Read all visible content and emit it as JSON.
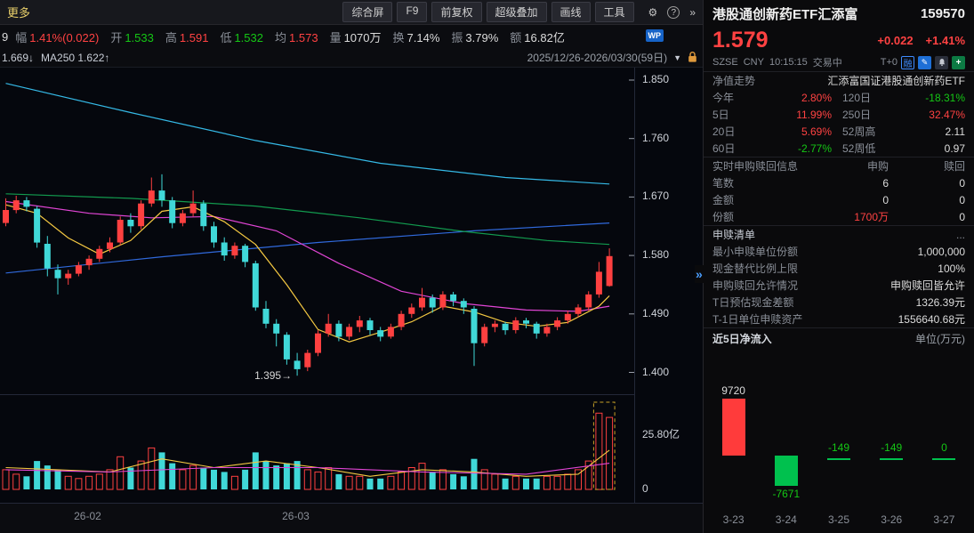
{
  "toolbar": {
    "more_label": "更多",
    "tabs": [
      "综合屏",
      "F9",
      "前复权",
      "超级叠加",
      "画线",
      "工具"
    ]
  },
  "stats": {
    "leading_fragment": "9",
    "items": [
      {
        "label": "幅",
        "value": "1.41%(0.022)",
        "color": "red"
      },
      {
        "label": "开",
        "value": "1.533",
        "color": "green"
      },
      {
        "label": "高",
        "value": "1.591",
        "color": "red"
      },
      {
        "label": "低",
        "value": "1.532",
        "color": "green"
      },
      {
        "label": "均",
        "value": "1.573",
        "color": "red"
      },
      {
        "label": "量",
        "value": "1070万",
        "color": "white"
      },
      {
        "label": "换",
        "value": "7.14%",
        "color": "white"
      },
      {
        "label": "振",
        "value": "3.79%",
        "color": "white"
      },
      {
        "label": "额",
        "value": "16.82亿",
        "color": "white"
      }
    ],
    "wp_badge": "WP"
  },
  "ma_bar": {
    "ma_fragment": "1.669↓",
    "ma250_label": "MA250 1.622↑",
    "date_range": "2025/12/26-2026/03/30(59日)",
    "dropdown_icon": "▼"
  },
  "quote": {
    "name": "港股通创新药ETF汇添富",
    "code": "159570",
    "price": "1.579",
    "change": "+0.022",
    "change_pct": "+1.41%",
    "exchange": "SZSE",
    "currency": "CNY",
    "time": "10:15:15",
    "status": "交易中",
    "t0_label": "T+0",
    "rong_label": "融"
  },
  "nav_section": {
    "title": "净值走势",
    "fund_name": "汇添富国证港股通创新药ETF",
    "rows": [
      {
        "l1": "今年",
        "v1": "2.80%",
        "c1": "red",
        "l2": "120日",
        "v2": "-18.31%",
        "c2": "green"
      },
      {
        "l1": "5日",
        "v1": "11.99%",
        "c1": "red",
        "l2": "250日",
        "v2": "32.47%",
        "c2": "red"
      },
      {
        "l1": "20日",
        "v1": "5.69%",
        "c1": "red",
        "l2": "52周高",
        "v2": "2.11",
        "c2": "white"
      },
      {
        "l1": "60日",
        "v1": "-2.77%",
        "c1": "green",
        "l2": "52周低",
        "v2": "0.97",
        "c2": "white"
      }
    ]
  },
  "subs_section": {
    "title": "实时申购赎回信息",
    "col1": "申购",
    "col2": "赎回",
    "rows": [
      {
        "label": "笔数",
        "v1": "6",
        "c1": "white",
        "v2": "0",
        "c2": "white"
      },
      {
        "label": "金额",
        "v1": "0",
        "c1": "white",
        "v2": "0",
        "c2": "white"
      },
      {
        "label": "份额",
        "v1": "1700万",
        "c1": "red",
        "v2": "0",
        "c2": "white"
      }
    ]
  },
  "list_section": {
    "title": "申赎清单",
    "more": "...",
    "rows": [
      {
        "label": "最小申赎单位份额",
        "value": "1,000,000"
      },
      {
        "label": "现金替代比例上限",
        "value": "100%"
      },
      {
        "label": "申购赎回允许情况",
        "value": "申购赎回皆允许"
      },
      {
        "label": "T日预估现金差额",
        "value": "1326.39元"
      },
      {
        "label": "T-1日单位申赎资产",
        "value": "1556640.68元"
      }
    ]
  },
  "flow_section": {
    "title": "近5日净流入",
    "unit": "单位(万元)",
    "items": [
      {
        "date": "3-23",
        "value": 9720,
        "label": "9720",
        "color": "red",
        "label_color": "white",
        "label_pos": "above"
      },
      {
        "date": "3-24",
        "value": -7671,
        "label": "-7671",
        "color": "green",
        "label_color": "green",
        "label_pos": "below"
      },
      {
        "date": "3-25",
        "value": -149,
        "label": "-149",
        "color": "green",
        "label_color": "green",
        "label_pos": "above"
      },
      {
        "date": "3-26",
        "value": -149,
        "label": "-149",
        "color": "green",
        "label_color": "green",
        "label_pos": "above"
      },
      {
        "date": "3-27",
        "value": 0,
        "label": "0",
        "color": "green",
        "label_color": "green",
        "label_pos": "above"
      }
    ]
  },
  "chart_data": {
    "type": "candlestick",
    "title": "港股通创新药ETF汇添富 159570 日K",
    "date_range": "2025/12/26-2026/03/30(59日)",
    "y_ticks": [
      "1.850",
      "1.760",
      "1.670",
      "1.580",
      "1.490",
      "1.400"
    ],
    "price_min_annotation": "1.395",
    "volume_ticks": [
      {
        "label": "25.80亿",
        "value": 25.8
      },
      {
        "label": "0",
        "value": 0
      }
    ],
    "volume_scale_max": 40,
    "x_labels": [
      {
        "label": "26-02",
        "index": 8
      },
      {
        "label": "26-03",
        "index": 28
      }
    ],
    "colors": {
      "up": "#fe4040",
      "down": "#40d8d8"
    },
    "highlight_last_n": 2,
    "candles": [
      [
        1.63,
        1.668,
        1.625,
        1.65
      ],
      [
        1.65,
        1.672,
        1.645,
        1.665
      ],
      [
        1.665,
        1.67,
        1.648,
        1.655
      ],
      [
        1.652,
        1.656,
        1.592,
        1.6
      ],
      [
        1.598,
        1.61,
        1.548,
        1.56
      ],
      [
        1.558,
        1.566,
        1.52,
        1.545
      ],
      [
        1.545,
        1.558,
        1.535,
        1.552
      ],
      [
        1.552,
        1.57,
        1.548,
        1.565
      ],
      [
        1.565,
        1.58,
        1.558,
        1.575
      ],
      [
        1.575,
        1.595,
        1.57,
        1.59
      ],
      [
        1.59,
        1.608,
        1.585,
        1.6
      ],
      [
        1.6,
        1.64,
        1.596,
        1.635
      ],
      [
        1.635,
        1.645,
        1.615,
        1.625
      ],
      [
        1.625,
        1.665,
        1.62,
        1.66
      ],
      [
        1.66,
        1.7,
        1.655,
        1.68
      ],
      [
        1.68,
        1.705,
        1.655,
        1.665
      ],
      [
        1.665,
        1.67,
        1.622,
        1.63
      ],
      [
        1.63,
        1.65,
        1.625,
        1.645
      ],
      [
        1.645,
        1.68,
        1.64,
        1.66
      ],
      [
        1.66,
        1.665,
        1.618,
        1.625
      ],
      [
        1.625,
        1.632,
        1.592,
        1.6
      ],
      [
        1.6,
        1.608,
        1.572,
        1.58
      ],
      [
        1.58,
        1.6,
        1.575,
        1.595
      ],
      [
        1.595,
        1.598,
        1.562,
        1.57
      ],
      [
        1.568,
        1.572,
        1.495,
        1.5
      ],
      [
        1.498,
        1.51,
        1.468,
        1.475
      ],
      [
        1.475,
        1.482,
        1.44,
        1.46
      ],
      [
        1.458,
        1.462,
        1.412,
        1.42
      ],
      [
        1.418,
        1.43,
        1.395,
        1.405
      ],
      [
        1.408,
        1.435,
        1.402,
        1.43
      ],
      [
        1.43,
        1.465,
        1.425,
        1.46
      ],
      [
        1.46,
        1.49,
        1.455,
        1.475
      ],
      [
        1.475,
        1.48,
        1.448,
        1.455
      ],
      [
        1.455,
        1.475,
        1.45,
        1.47
      ],
      [
        1.47,
        1.487,
        1.462,
        1.48
      ],
      [
        1.48,
        1.484,
        1.458,
        1.465
      ],
      [
        1.465,
        1.47,
        1.448,
        1.455
      ],
      [
        1.455,
        1.475,
        1.452,
        1.47
      ],
      [
        1.47,
        1.495,
        1.465,
        1.49
      ],
      [
        1.49,
        1.506,
        1.484,
        1.5
      ],
      [
        1.5,
        1.53,
        1.495,
        1.515
      ],
      [
        1.515,
        1.52,
        1.492,
        1.5
      ],
      [
        1.5,
        1.525,
        1.496,
        1.52
      ],
      [
        1.52,
        1.524,
        1.502,
        1.51
      ],
      [
        1.51,
        1.514,
        1.49,
        1.5
      ],
      [
        1.498,
        1.502,
        1.41,
        1.445
      ],
      [
        1.445,
        1.475,
        1.44,
        1.47
      ],
      [
        1.47,
        1.48,
        1.462,
        1.475
      ],
      [
        1.475,
        1.478,
        1.458,
        1.465
      ],
      [
        1.465,
        1.485,
        1.46,
        1.48
      ],
      [
        1.48,
        1.484,
        1.468,
        1.475
      ],
      [
        1.475,
        1.478,
        1.452,
        1.46
      ],
      [
        1.46,
        1.475,
        1.455,
        1.47
      ],
      [
        1.47,
        1.485,
        1.465,
        1.48
      ],
      [
        1.48,
        1.495,
        1.475,
        1.49
      ],
      [
        1.49,
        1.505,
        1.485,
        1.5
      ],
      [
        1.5,
        1.525,
        1.495,
        1.52
      ],
      [
        1.52,
        1.57,
        1.515,
        1.555
      ],
      [
        1.533,
        1.591,
        1.532,
        1.579
      ]
    ],
    "volumes": [
      9,
      7,
      6,
      13,
      11,
      9,
      6,
      5,
      6,
      7,
      9,
      15,
      10,
      13,
      19,
      17,
      12,
      9,
      11,
      10,
      9,
      8,
      6,
      9,
      17,
      13,
      11,
      12,
      13,
      9,
      8,
      10,
      7,
      6,
      6,
      5,
      5,
      6,
      8,
      10,
      12,
      8,
      9,
      7,
      6,
      14,
      9,
      7,
      5,
      6,
      5,
      5,
      6,
      6,
      7,
      9,
      13,
      35,
      33
    ],
    "ma_lines": [
      {
        "name": "ma-season-down",
        "color": "#35b9e6",
        "points": [
          [
            0,
            1.845
          ],
          [
            12,
            1.8
          ],
          [
            24,
            1.757
          ],
          [
            36,
            1.722
          ],
          [
            48,
            1.7
          ],
          [
            58,
            1.69
          ]
        ]
      },
      {
        "name": "ma-long-up",
        "color": "#3069dc",
        "points": [
          [
            0,
            1.553
          ],
          [
            15,
            1.578
          ],
          [
            30,
            1.6
          ],
          [
            45,
            1.618
          ],
          [
            58,
            1.63
          ]
        ]
      },
      {
        "name": "ma-green",
        "color": "#129a4e",
        "points": [
          [
            0,
            1.675
          ],
          [
            12,
            1.668
          ],
          [
            24,
            1.656
          ],
          [
            34,
            1.638
          ],
          [
            44,
            1.617
          ],
          [
            52,
            1.603
          ],
          [
            58,
            1.597
          ]
        ]
      },
      {
        "name": "ma-magenta",
        "color": "#e145d5",
        "points": [
          [
            0,
            1.663
          ],
          [
            8,
            1.645
          ],
          [
            14,
            1.638
          ],
          [
            20,
            1.64
          ],
          [
            26,
            1.618
          ],
          [
            32,
            1.568
          ],
          [
            38,
            1.525
          ],
          [
            44,
            1.506
          ],
          [
            50,
            1.496
          ],
          [
            55,
            1.494
          ],
          [
            58,
            1.502
          ]
        ]
      },
      {
        "name": "ma-yellow",
        "color": "#f5c942",
        "points": [
          [
            0,
            1.658
          ],
          [
            3,
            1.645
          ],
          [
            6,
            1.607
          ],
          [
            9,
            1.582
          ],
          [
            12,
            1.603
          ],
          [
            15,
            1.648
          ],
          [
            18,
            1.655
          ],
          [
            21,
            1.632
          ],
          [
            24,
            1.597
          ],
          [
            27,
            1.535
          ],
          [
            30,
            1.466
          ],
          [
            33,
            1.447
          ],
          [
            36,
            1.462
          ],
          [
            39,
            1.478
          ],
          [
            42,
            1.502
          ],
          [
            45,
            1.493
          ],
          [
            48,
            1.477
          ],
          [
            51,
            1.471
          ],
          [
            54,
            1.477
          ],
          [
            57,
            1.502
          ],
          [
            58,
            1.518
          ]
        ]
      }
    ],
    "vol_ma_lines": [
      {
        "name": "vol-ma-yellow",
        "color": "#f5c942",
        "points": [
          [
            0,
            10
          ],
          [
            5,
            9
          ],
          [
            10,
            8
          ],
          [
            15,
            14
          ],
          [
            20,
            10
          ],
          [
            25,
            13
          ],
          [
            30,
            10
          ],
          [
            35,
            6
          ],
          [
            40,
            9
          ],
          [
            45,
            8
          ],
          [
            50,
            6
          ],
          [
            55,
            7
          ],
          [
            58,
            18
          ]
        ]
      },
      {
        "name": "vol-ma-magenta",
        "color": "#e145d5",
        "points": [
          [
            0,
            9
          ],
          [
            10,
            8
          ],
          [
            20,
            10
          ],
          [
            30,
            10
          ],
          [
            40,
            8
          ],
          [
            50,
            7
          ],
          [
            58,
            12
          ]
        ]
      }
    ]
  }
}
